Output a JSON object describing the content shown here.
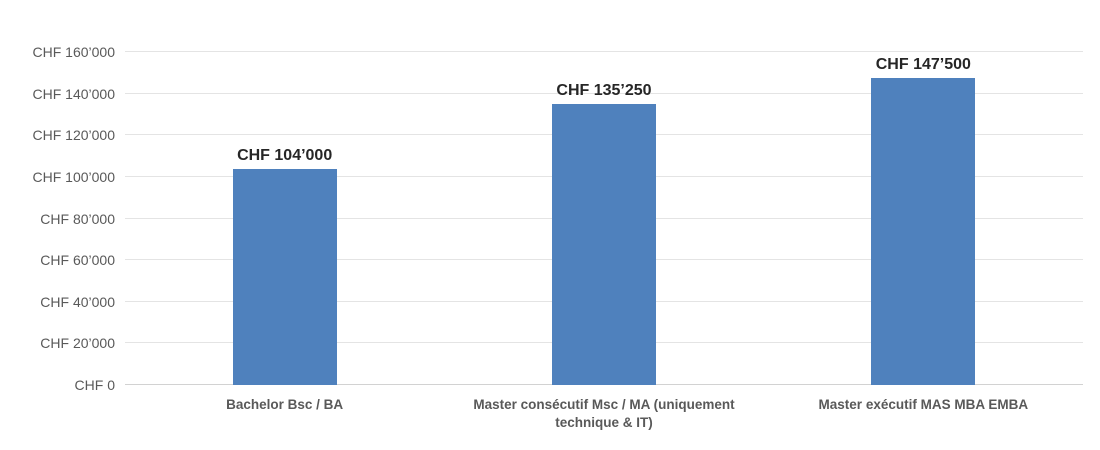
{
  "chart_data": {
    "type": "bar",
    "title": "",
    "categories": [
      "Bachelor Bsc / BA",
      "Master consécutif Msc / MA (uniquement technique & IT)",
      "Master exécutif MAS MBA EMBA"
    ],
    "values": [
      104000,
      135250,
      147500
    ],
    "value_labels": [
      "CHF 104’000",
      "CHF 135’250",
      "CHF 147’500"
    ],
    "y_ticks": [
      0,
      20000,
      40000,
      60000,
      80000,
      100000,
      120000,
      140000,
      160000
    ],
    "y_tick_labels": [
      "CHF 0",
      "CHF 20’000",
      "CHF 40’000",
      "CHF 60’000",
      "CHF 80’000",
      "CHF 100’000",
      "CHF 120’000",
      "CHF 140’000",
      "CHF 160’000"
    ],
    "xlabel": "",
    "ylabel": "",
    "ylim": [
      0,
      160000
    ],
    "grid": "horizontal",
    "legend": "none",
    "colors": {
      "bar": "#4F81BD",
      "gridline": "#E4E4E4",
      "axis_line": "#D2D2D2",
      "tick_label": "#595959",
      "value_label": "#262626",
      "category_label": "#595959",
      "background": "#FFFFFF"
    }
  }
}
